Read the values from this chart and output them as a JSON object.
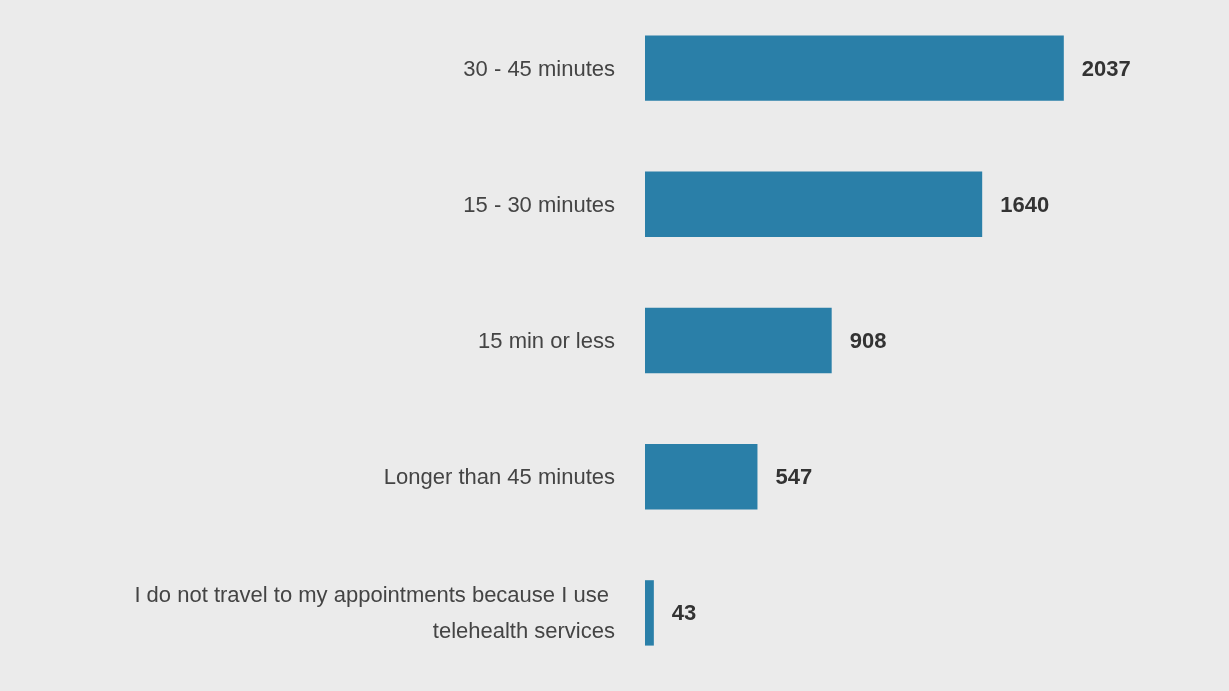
{
  "chart_data": {
    "type": "bar",
    "orientation": "horizontal",
    "categories": [
      "30 - 45 minutes",
      "15 - 30 minutes",
      "15 min or less",
      "Longer than 45 minutes",
      "I do not travel to my appointments because I use telehealth services"
    ],
    "values": [
      2037,
      1640,
      908,
      547,
      43
    ],
    "color": "#2a7fa8",
    "data_labels": true
  }
}
